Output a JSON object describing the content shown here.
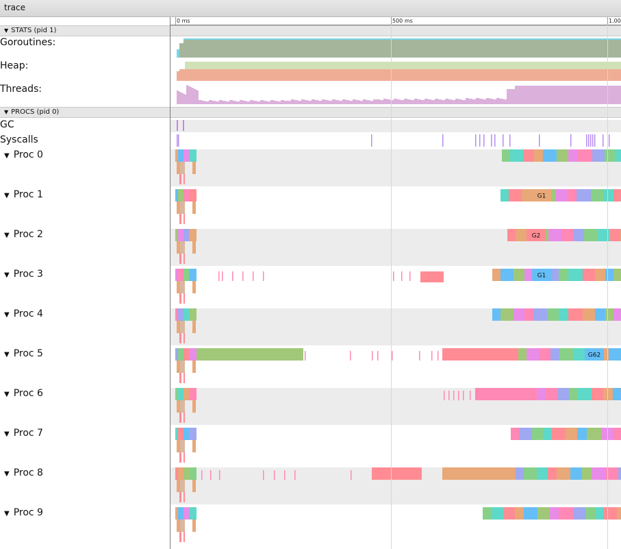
{
  "tab": {
    "title": "trace"
  },
  "ruler": {
    "labels": [
      "0 ms",
      "500 ms",
      "1.00"
    ]
  },
  "stats": {
    "header": "STATS (pid 1)",
    "counters": [
      {
        "label": "Goroutines:",
        "colors": [
          "#a5b59b",
          "#79d6e4"
        ]
      },
      {
        "label": "Heap:",
        "colors": [
          "#d0e1b7",
          "#efad96"
        ]
      },
      {
        "label": "Threads:",
        "colors": [
          "#dbb0db"
        ]
      }
    ]
  },
  "procs": {
    "header": "PROCS (pid 0)",
    "rows": [
      {
        "label": "GC"
      },
      {
        "label": "Syscalls"
      }
    ],
    "items": [
      {
        "label": "Proc 0",
        "slice_label": ""
      },
      {
        "label": "Proc 1",
        "slice_label": "G1"
      },
      {
        "label": "Proc 2",
        "slice_label": "G2"
      },
      {
        "label": "Proc 3",
        "slice_label": "G1"
      },
      {
        "label": "Proc 4",
        "slice_label": ""
      },
      {
        "label": "Proc 5",
        "slice_label": "G62"
      },
      {
        "label": "Proc 6",
        "slice_label": ""
      },
      {
        "label": "Proc 7",
        "slice_label": ""
      },
      {
        "label": "Proc 8",
        "slice_label": ""
      },
      {
        "label": "Proc 9",
        "slice_label": ""
      }
    ]
  },
  "colors": {
    "slices": [
      "#88d088",
      "#5ed8c8",
      "#ff8c94",
      "#e8a878",
      "#66bef6",
      "#a0c878",
      "#e88ce8",
      "#ff88b4",
      "#9fa8f0"
    ],
    "gc": "#c783e8",
    "syscall": "#b68df0"
  }
}
